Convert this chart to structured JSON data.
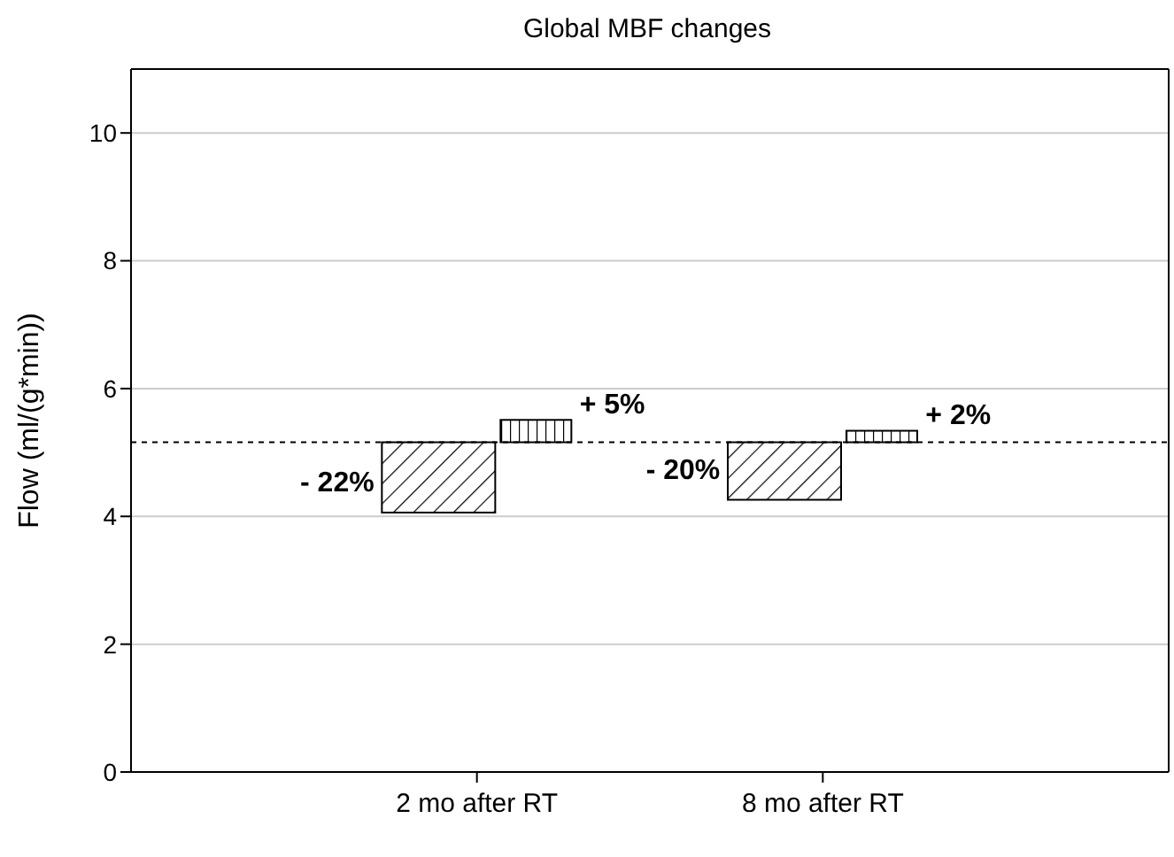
{
  "chart_data": {
    "type": "bar",
    "title": "Global MBF changes",
    "ylabel": "Flow (ml/(g*min))",
    "categories": [
      "2 mo after RT",
      "8 mo after RT"
    ],
    "series": [
      {
        "color": "#000000",
        "base": [
          5.16,
          5.16
        ],
        "values": [
          -1.1,
          -0.9
        ]
      },
      {
        "color": "#000000",
        "base": [
          5.16,
          5.16
        ],
        "values": [
          0.35,
          0.18
        ]
      }
    ],
    "ylim": [
      0,
      11
    ],
    "yticks": [
      0,
      2,
      4,
      6,
      8,
      10
    ],
    "grid": "y",
    "legend": false,
    "annotations": [
      "- 22%",
      "+ 5%",
      "- 20%",
      "+ 2%"
    ],
    "ref_lines": [
      {
        "axis": "y",
        "value": 5.16,
        "color": "#000000",
        "line_style": "dashed"
      }
    ]
  }
}
